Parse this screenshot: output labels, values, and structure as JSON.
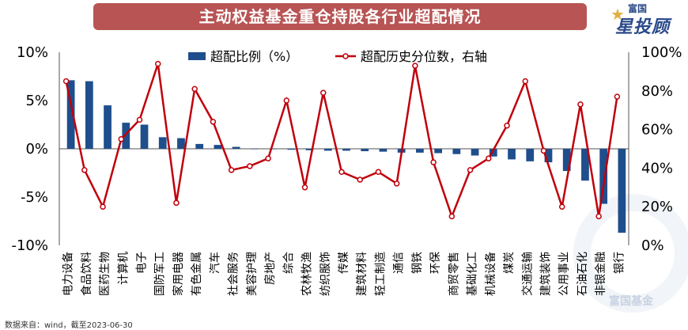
{
  "header": {
    "title": "主动权益基金重仓持股各行业超配情况"
  },
  "logo": {
    "top": "富国",
    "brand": "星投顾"
  },
  "footer": {
    "source": "数据来自：wind，截至2023-06-30"
  },
  "watermark": {
    "text": "富国基金"
  },
  "colors": {
    "bar": "#1f4e8c",
    "line": "#c0000b",
    "title_bg": "#b85454"
  },
  "chart_data": {
    "type": "bar+line",
    "categories": [
      "电力设备",
      "食品饮料",
      "医药生物",
      "计算机",
      "电子",
      "国防军工",
      "家用电器",
      "有色金属",
      "汽车",
      "社会服务",
      "美容护理",
      "房地产",
      "综合",
      "农林牧渔",
      "纺织服饰",
      "传媒",
      "建筑材料",
      "轻工制造",
      "通信",
      "钢铁",
      "环保",
      "商贸零售",
      "基础化工",
      "机械设备",
      "煤炭",
      "交通运输",
      "建筑装饰",
      "公用事业",
      "石油石化",
      "非银金融",
      "银行"
    ],
    "series": [
      {
        "name": "超配比例（%）",
        "axis": "left",
        "type": "bar",
        "values": [
          7.1,
          7.0,
          4.5,
          2.7,
          2.5,
          1.2,
          1.1,
          0.5,
          0.4,
          0.2,
          0.0,
          0.0,
          -0.1,
          -0.15,
          -0.2,
          -0.2,
          -0.25,
          -0.3,
          -0.4,
          -0.4,
          -0.45,
          -0.55,
          -0.7,
          -0.8,
          -1.1,
          -1.3,
          -1.4,
          -2.3,
          -3.3,
          -5.7,
          -8.7
        ]
      },
      {
        "name": "超配历史分位数，右轴",
        "axis": "right",
        "type": "line",
        "values": [
          85,
          39,
          20,
          55,
          65,
          94,
          22,
          81,
          64,
          39,
          41,
          45,
          75,
          30,
          79,
          38,
          34,
          38,
          32,
          93,
          43,
          15,
          39,
          45,
          62,
          85,
          49,
          20,
          73,
          15,
          77
        ]
      }
    ],
    "left_axis": {
      "min": -10,
      "max": 10,
      "ticks": [
        "10%",
        "5%",
        "0%",
        "-5%",
        "-10%"
      ]
    },
    "right_axis": {
      "min": 0,
      "max": 100,
      "ticks": [
        "100%",
        "80%",
        "60%",
        "40%",
        "20%",
        "0%"
      ]
    },
    "legend": {
      "position": "top"
    }
  }
}
